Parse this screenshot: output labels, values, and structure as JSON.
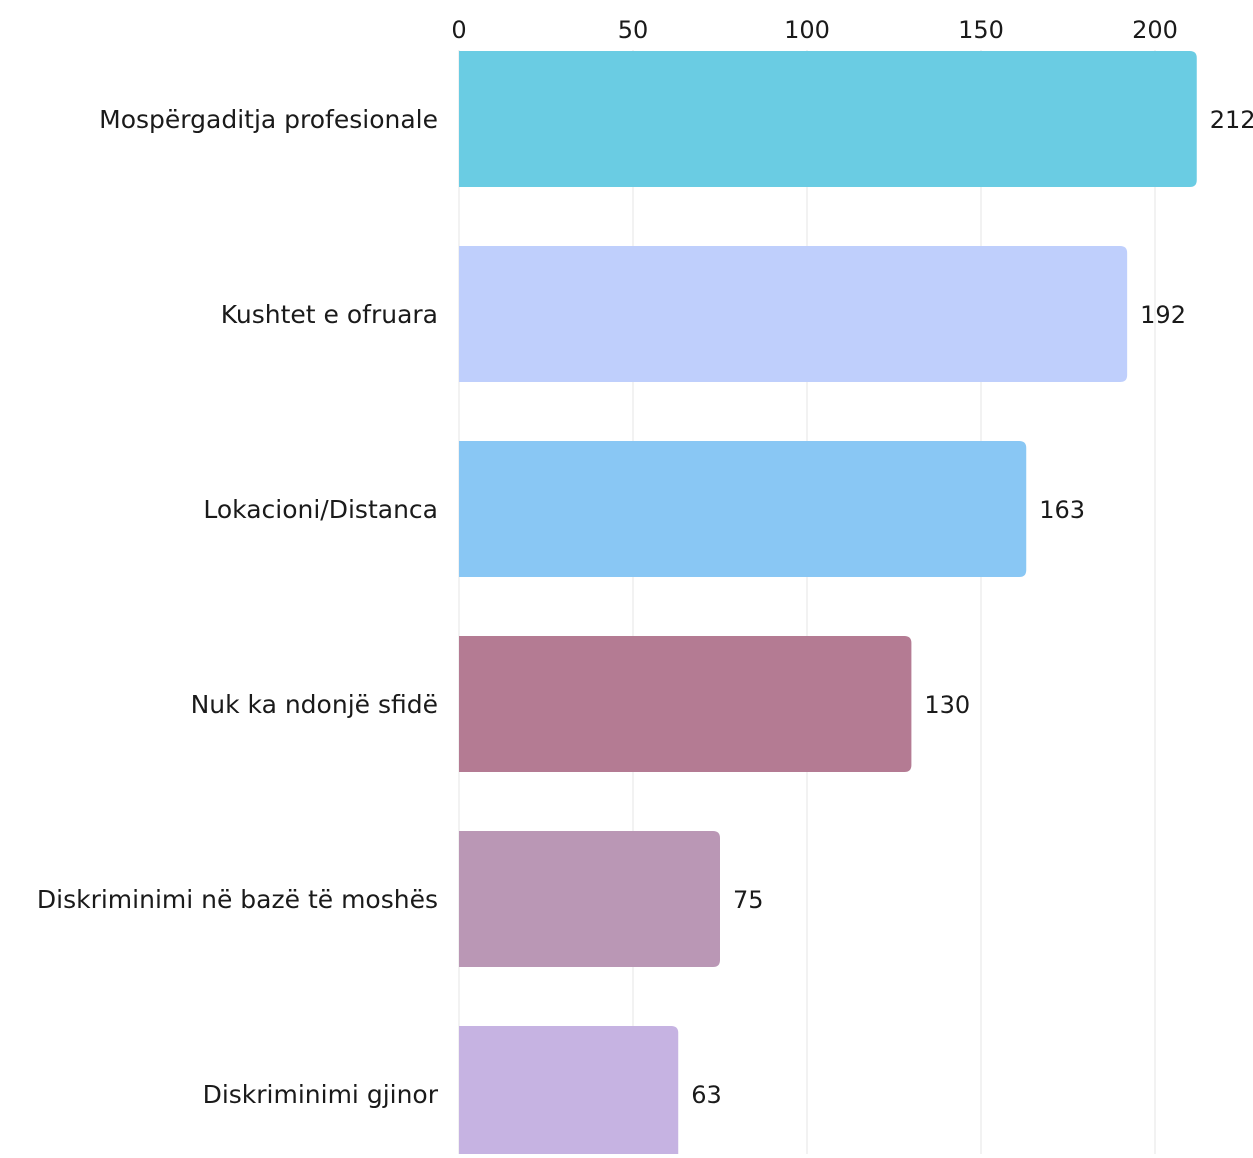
{
  "chart_data": {
    "type": "bar",
    "orientation": "horizontal",
    "title": "",
    "xlabel": "",
    "ylabel": "",
    "xlim": [
      0,
      212
    ],
    "x_ticks": [
      0,
      50,
      100,
      150,
      200
    ],
    "x_tick_labels": [
      "0",
      "50",
      "100",
      "150",
      "200"
    ],
    "x_axis_position": "top",
    "grid": "vertical",
    "legend": "none",
    "categories": [
      "Mospërgaditja profesionale",
      "Kushtet e ofruara",
      "Lokacioni/Distanca",
      "Nuk ka ndonjë sfidë",
      "Diskriminimi në bazë të moshës",
      "Diskriminimi gjinor"
    ],
    "values": [
      212,
      192,
      163,
      130,
      75,
      63
    ],
    "value_labels": [
      "212",
      "192",
      "163",
      "130",
      "75",
      "63"
    ],
    "colors": [
      "#6acce3",
      "#bfcffc",
      "#89c7f4",
      "#b47b93",
      "#ba97b5",
      "#c6b3e2"
    ],
    "grid_color": "#e6e6e6",
    "text_color": "#1a1a1a"
  }
}
